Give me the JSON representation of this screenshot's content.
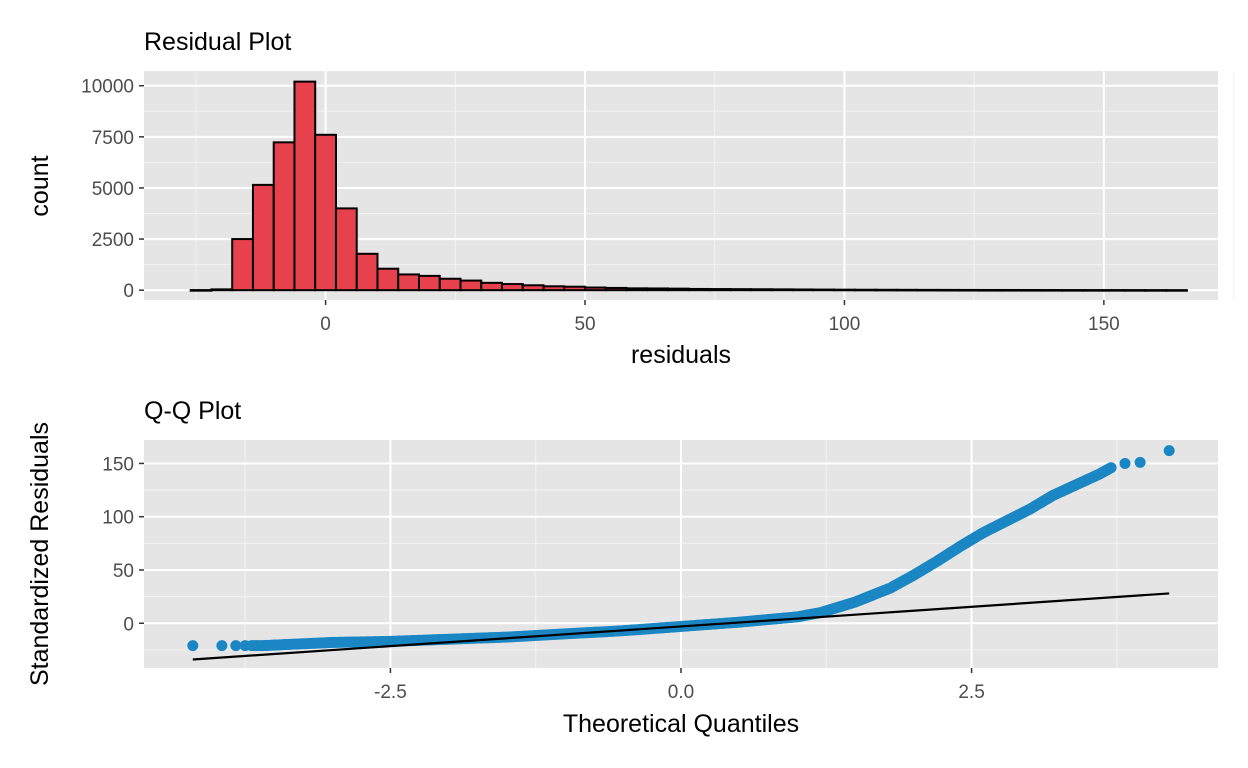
{
  "chart_data": [
    {
      "type": "bar",
      "title": "Residual Plot",
      "xlabel": "residuals",
      "ylabel": "count",
      "xlim": [
        -35,
        172
      ],
      "ylim": [
        -480,
        10720
      ],
      "xticks": [
        0,
        50,
        100,
        150
      ],
      "xtick_labels": [
        "0",
        "50",
        "100",
        "150"
      ],
      "yticks": [
        0,
        2500,
        5000,
        7500,
        10000
      ],
      "ytick_labels": [
        "0",
        "2500",
        "5000",
        "7500",
        "10000"
      ],
      "bin_width": 4,
      "bin_starts": [
        -26,
        -22,
        -18,
        -14,
        -10,
        -6,
        -2,
        2,
        6,
        10,
        14,
        18,
        22,
        26,
        30,
        34,
        38,
        42,
        46,
        50,
        54,
        58,
        62,
        66,
        70,
        74,
        78,
        82,
        86,
        90,
        94,
        98,
        102,
        106,
        110,
        114,
        118,
        122,
        126,
        130,
        134,
        138,
        142,
        146,
        150,
        154,
        158,
        162
      ],
      "values": [
        5,
        40,
        2500,
        5150,
        7230,
        10200,
        7600,
        4000,
        1780,
        1050,
        770,
        700,
        560,
        470,
        360,
        300,
        240,
        190,
        170,
        130,
        110,
        90,
        85,
        75,
        60,
        55,
        50,
        45,
        40,
        35,
        30,
        25,
        22,
        20,
        18,
        15,
        14,
        12,
        10,
        10,
        9,
        8,
        7,
        6,
        6,
        5,
        4,
        3
      ],
      "bar_color": "#e8414e",
      "bar_outline": "#000000",
      "panel_background": "#e5e5e5",
      "grid": true
    },
    {
      "type": "scatter",
      "title": "Q-Q Plot",
      "xlabel": "Theoretical Quantiles",
      "ylabel": "Standardized Residuals",
      "xlim": [
        -4.62,
        4.62
      ],
      "ylim": [
        -42,
        172
      ],
      "xticks": [
        -2.5,
        0.0,
        2.5
      ],
      "xtick_labels": [
        "-2.5",
        "0.0",
        "2.5"
      ],
      "yticks": [
        0,
        50,
        100,
        150
      ],
      "ytick_labels": [
        "0",
        "50",
        "100",
        "150"
      ],
      "points_curve": [
        [
          -4.2,
          -21
        ],
        [
          -3.95,
          -21
        ],
        [
          -3.83,
          -21
        ],
        [
          -3.75,
          -21
        ],
        [
          -3.6,
          -21
        ],
        [
          -3.4,
          -20
        ],
        [
          -3.2,
          -19
        ],
        [
          -3.0,
          -18
        ],
        [
          -2.5,
          -17
        ],
        [
          -2.0,
          -15
        ],
        [
          -1.5,
          -13
        ],
        [
          -1.0,
          -10
        ],
        [
          -0.5,
          -7
        ],
        [
          0.0,
          -3
        ],
        [
          0.5,
          1
        ],
        [
          1.0,
          6
        ],
        [
          1.2,
          10
        ],
        [
          1.5,
          20
        ],
        [
          1.8,
          33
        ],
        [
          2.0,
          45
        ],
        [
          2.2,
          58
        ],
        [
          2.4,
          72
        ],
        [
          2.6,
          85
        ],
        [
          2.8,
          96
        ],
        [
          3.0,
          107
        ],
        [
          3.2,
          120
        ],
        [
          3.4,
          130
        ],
        [
          3.6,
          140
        ],
        [
          3.7,
          146
        ]
      ],
      "outlier_points": [
        [
          3.82,
          150
        ],
        [
          3.95,
          151
        ],
        [
          4.2,
          162
        ]
      ],
      "reference_line": {
        "x": [
          -4.2,
          4.2
        ],
        "y": [
          -34,
          28
        ]
      },
      "point_color": "#1a87c4",
      "line_color": "#000000",
      "panel_background": "#e5e5e5",
      "grid": true
    }
  ]
}
